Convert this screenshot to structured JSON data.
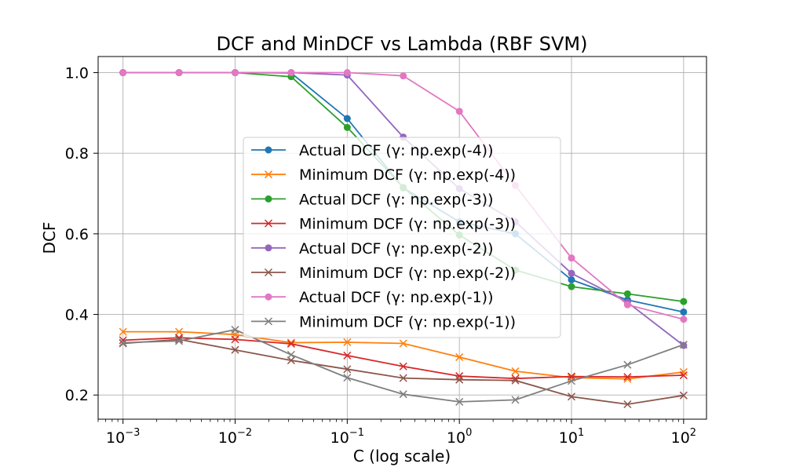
{
  "chart_data": {
    "type": "line",
    "title": "DCF and MinDCF vs Lambda (RBF SVM)",
    "xlabel": "C (log scale)",
    "ylabel": "DCF",
    "xscale": "log",
    "xlim": [
      0.0006,
      160
    ],
    "ylim": [
      0.14,
      1.04
    ],
    "grid": true,
    "legend_position": "center",
    "x": [
      0.001,
      0.00316,
      0.01,
      0.0316,
      0.1,
      0.316,
      1,
      3.16,
      10,
      31.6,
      100
    ],
    "x_ticks": [
      {
        "value": 0.001,
        "base": "10",
        "exp": "−3"
      },
      {
        "value": 0.01,
        "base": "10",
        "exp": "−2"
      },
      {
        "value": 0.1,
        "base": "10",
        "exp": "−1"
      },
      {
        "value": 1,
        "base": "10",
        "exp": "0"
      },
      {
        "value": 10,
        "base": "10",
        "exp": "1"
      },
      {
        "value": 100,
        "base": "10",
        "exp": "2"
      }
    ],
    "y_ticks": [
      {
        "value": 0.2,
        "label": "0.2"
      },
      {
        "value": 0.4,
        "label": "0.4"
      },
      {
        "value": 0.6,
        "label": "0.6"
      },
      {
        "value": 0.8,
        "label": "0.8"
      },
      {
        "value": 1.0,
        "label": "1.0"
      }
    ],
    "series": [
      {
        "name": "Actual DCF (γ: np.exp(-4))",
        "color": "#1f77b4",
        "marker": "circle",
        "values": [
          1.0,
          1.0,
          1.0,
          0.999,
          0.886,
          0.714,
          0.63,
          0.6,
          0.486,
          0.436,
          0.406
        ]
      },
      {
        "name": "Minimum DCF (γ: np.exp(-4))",
        "color": "#ff7f0e",
        "marker": "x",
        "values": [
          0.357,
          0.357,
          0.35,
          0.33,
          0.331,
          0.328,
          0.294,
          0.259,
          0.243,
          0.24,
          0.257
        ]
      },
      {
        "name": "Actual DCF (γ: np.exp(-3))",
        "color": "#2ca02c",
        "marker": "circle",
        "values": [
          1.0,
          1.0,
          1.0,
          0.99,
          0.864,
          0.715,
          0.597,
          0.51,
          0.469,
          0.451,
          0.432
        ]
      },
      {
        "name": "Minimum DCF (γ: np.exp(-3))",
        "color": "#d62728",
        "marker": "x",
        "values": [
          0.336,
          0.342,
          0.338,
          0.327,
          0.298,
          0.271,
          0.247,
          0.241,
          0.246,
          0.245,
          0.249
        ]
      },
      {
        "name": "Actual DCF (γ: np.exp(-2))",
        "color": "#9467bd",
        "marker": "circle",
        "values": [
          1.0,
          1.0,
          1.0,
          1.0,
          0.994,
          0.84,
          0.712,
          0.63,
          0.502,
          0.43,
          0.323
        ]
      },
      {
        "name": "Minimum DCF (γ: np.exp(-2))",
        "color": "#8c564b",
        "marker": "x",
        "values": [
          0.328,
          0.338,
          0.312,
          0.286,
          0.264,
          0.242,
          0.238,
          0.236,
          0.196,
          0.177,
          0.199
        ]
      },
      {
        "name": "Actual DCF (γ: np.exp(-1))",
        "color": "#e377c2",
        "marker": "circle",
        "values": [
          1.0,
          1.0,
          1.0,
          1.0,
          1.0,
          0.992,
          0.904,
          0.72,
          0.54,
          0.424,
          0.388
        ]
      },
      {
        "name": "Minimum DCF (γ: np.exp(-1))",
        "color": "#7f7f7f",
        "marker": "x",
        "values": [
          0.33,
          0.334,
          0.362,
          0.3,
          0.243,
          0.202,
          0.183,
          0.188,
          0.235,
          0.275,
          0.325
        ]
      }
    ]
  }
}
